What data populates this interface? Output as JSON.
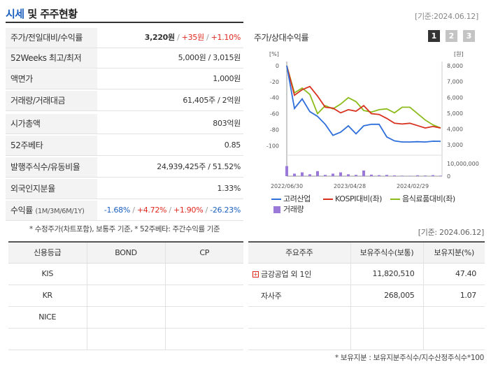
{
  "header": {
    "title_a": "시세",
    "title_b": " 및 주주현황",
    "date": "[기준:2024.06.12]"
  },
  "price_table": {
    "rows": [
      {
        "label": "주가/전일대비/수익률"
      },
      {
        "label": "52Weeks 최고/최저",
        "value": "5,000원 / 3,015원"
      },
      {
        "label": "액면가",
        "value": "1,000원"
      },
      {
        "label": "거래량/거래대금",
        "value": "61,405주 / 2억원"
      },
      {
        "label": "시가총액",
        "value": "803억원"
      },
      {
        "label": "52주베타",
        "value": "0.85"
      },
      {
        "label": "발행주식수/유동비율",
        "value": "24,939,425주 / 51.52%"
      },
      {
        "label": "외국인지분율",
        "value": "1.33%"
      },
      {
        "label": "수익률",
        "label_sub": "(1M/3M/6M/1Y)"
      }
    ],
    "price": "3,220원",
    "change": "+35원",
    "change_pct": "+1.10%",
    "slash": "/",
    "returns": [
      "-1.68%",
      "+4.72%",
      "+1.90%",
      "-26.23%"
    ],
    "note": "* 수정주가(차트포함), 보통주 기준, * 52주베타: 주간수익률 기준"
  },
  "chart": {
    "title": "주가/상대수익률",
    "tabs": [
      "1",
      "2",
      "3"
    ],
    "active_tab": 0,
    "left_unit": "[%]",
    "right_unit": "[원]",
    "legend_price": "고려산업",
    "legend_kospi": "KOSPI대비(좌)",
    "legend_sector": "음식료품대비(좌)",
    "legend_volume": "거래량",
    "colors": {
      "price": "#2e6fdc",
      "kospi": "#d9301e",
      "sector": "#8cbb1c",
      "volume": "#9a79d8"
    }
  },
  "chart_data": {
    "type": "line",
    "x_ticks": [
      "2022/06/30",
      "2023/04/28",
      "2024/02/29"
    ],
    "left_axis": {
      "ticks": [
        0,
        -20,
        -40,
        -60,
        -80,
        -100
      ],
      "range": [
        -105,
        0
      ]
    },
    "right_axis": {
      "ticks": [
        "8,000",
        "7,000",
        "6,000",
        "5,000",
        "4,000",
        "3,000"
      ],
      "range": [
        2700,
        8000
      ]
    },
    "volume_axis": {
      "ticks": [
        "10,000,000",
        "0"
      ],
      "range": [
        0,
        10000000
      ]
    },
    "series": [
      {
        "name": "고려산업",
        "axis": "right",
        "values": [
          8000,
          5300,
          5900,
          5100,
          4800,
          4300,
          3600,
          3800,
          4200,
          3700,
          4200,
          4300,
          4300,
          3500,
          3250,
          3180,
          3180,
          3200,
          3180,
          3230,
          3220
        ]
      },
      {
        "name": "KOSPI대비(좌)",
        "axis": "left",
        "values": [
          0,
          -37,
          -30,
          -26,
          -38,
          -52,
          -53,
          -59,
          -55,
          -57,
          -50,
          -60,
          -61,
          -66,
          -72,
          -73,
          -72,
          -75,
          -78,
          -76,
          -78
        ]
      },
      {
        "name": "음식료품대비(좌)",
        "axis": "left",
        "values": [
          0,
          -34,
          -28,
          -36,
          -60,
          -50,
          -54,
          -48,
          -40,
          -45,
          -56,
          -58,
          -55,
          -54,
          -59,
          -52,
          -52,
          -60,
          -68,
          -74,
          -78
        ]
      },
      {
        "name": "거래량",
        "axis": "volume",
        "values": [
          8000000,
          2000000,
          3000000,
          1500000,
          4000000,
          1000000,
          2000000,
          3000000,
          1500000,
          1000000,
          4500000,
          1200000,
          800000,
          1000000,
          600000,
          400000,
          300000,
          700000,
          500000,
          800000,
          400000
        ]
      }
    ]
  },
  "date2": "[기준: 2024.06.12]",
  "credit": {
    "headers": [
      "신용등급",
      "BOND",
      "CP"
    ],
    "rows": [
      [
        "KIS",
        "",
        ""
      ],
      [
        "KR",
        "",
        ""
      ],
      [
        "NICE",
        "",
        ""
      ],
      [
        "",
        "",
        ""
      ]
    ]
  },
  "holders": {
    "headers": [
      "주요주주",
      "보유주식수(보통)",
      "보유지분(%)"
    ],
    "rows": [
      {
        "name": "금강공업 외 1인",
        "shares": "11,820,510",
        "pct": "47.40",
        "expand": true
      },
      {
        "name": "자사주",
        "shares": "268,005",
        "pct": "1.07",
        "expand": false
      },
      {
        "name": "",
        "shares": "",
        "pct": ""
      },
      {
        "name": "",
        "shares": "",
        "pct": ""
      }
    ],
    "expand_icon": "+"
  },
  "footnote": "* 보유지분 : 보유지분주식수/지수산정주식수*100"
}
